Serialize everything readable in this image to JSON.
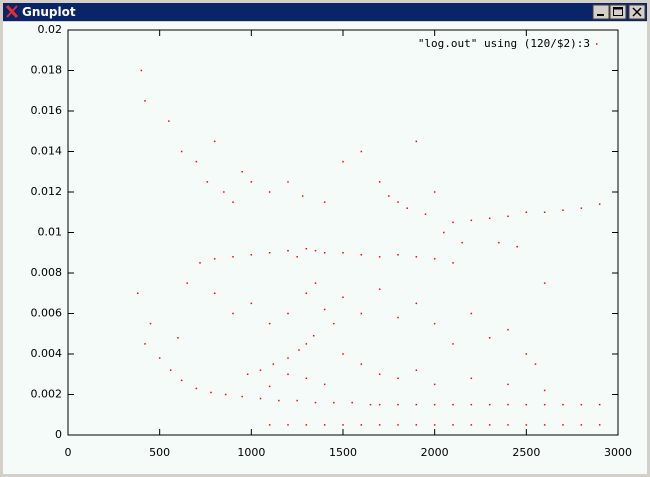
{
  "window": {
    "title": "Gnuplot"
  },
  "chart_data": {
    "type": "scatter",
    "xlim": [
      0,
      3000
    ],
    "ylim": [
      0,
      0.02
    ],
    "xticks": [
      0,
      500,
      1000,
      1500,
      2000,
      2500,
      3000
    ],
    "yticks": [
      0,
      0.002,
      0.004,
      0.006,
      0.008,
      0.01,
      0.012,
      0.014,
      0.016,
      0.018,
      0.02
    ],
    "legend": "top-right",
    "series": [
      {
        "name": "\"log.out\" using (120/$2):3",
        "color": "#ff0000",
        "x": [
          1100,
          1200,
          1300,
          1400,
          1500,
          1600,
          1700,
          1800,
          1900,
          2000,
          2100,
          2200,
          2300,
          2400,
          2500,
          2600,
          2700,
          2800,
          2900,
          1700,
          1800,
          1900,
          2000,
          2100,
          2200,
          2300,
          2400,
          2500,
          2600,
          2700,
          2800,
          2900,
          420,
          500,
          560,
          620,
          700,
          780,
          860,
          950,
          1050,
          1150,
          1250,
          1350,
          1450,
          1550,
          1650,
          980,
          1050,
          1120,
          1200,
          1260,
          1300,
          1340,
          720,
          800,
          900,
          1000,
          1100,
          1200,
          1250,
          1300,
          1350,
          1400,
          1500,
          1600,
          1700,
          1800,
          1900,
          2000,
          2100,
          1750,
          1850,
          1950,
          2100,
          2200,
          2300,
          2400,
          2500,
          2600,
          2700,
          2800,
          2900,
          400,
          420,
          550,
          620,
          700,
          760,
          800,
          850,
          900,
          950,
          1000,
          1100,
          1200,
          1280,
          1400,
          1500,
          1600,
          1700,
          1800,
          1900,
          2000,
          2050,
          2150,
          2350,
          2450,
          2600,
          650,
          800,
          900,
          1000,
          1100,
          1200,
          1300,
          1350,
          1400,
          1450,
          1500,
          1600,
          1700,
          1800,
          1900,
          2000,
          2100,
          2200,
          2300,
          2400,
          2500,
          2550,
          1500,
          1600,
          1700,
          1800,
          1900,
          2000,
          2200,
          2400,
          2600,
          1400,
          1300,
          1200,
          1100,
          380,
          450,
          600
        ],
        "values": [
          0.0005,
          0.0005,
          0.0005,
          0.0005,
          0.0005,
          0.0005,
          0.0005,
          0.0005,
          0.0005,
          0.0005,
          0.0005,
          0.0005,
          0.0005,
          0.0005,
          0.0005,
          0.0005,
          0.0005,
          0.0005,
          0.0005,
          0.0015,
          0.0015,
          0.0015,
          0.0015,
          0.0015,
          0.0015,
          0.0015,
          0.0015,
          0.0015,
          0.0015,
          0.0015,
          0.0015,
          0.0015,
          0.0045,
          0.0038,
          0.0032,
          0.0027,
          0.0023,
          0.0021,
          0.002,
          0.0019,
          0.0018,
          0.0017,
          0.0017,
          0.0016,
          0.0016,
          0.0016,
          0.0015,
          0.003,
          0.0032,
          0.0035,
          0.0038,
          0.0042,
          0.0045,
          0.0049,
          0.0085,
          0.0087,
          0.0088,
          0.0089,
          0.009,
          0.0091,
          0.0088,
          0.0092,
          0.0091,
          0.009,
          0.009,
          0.0089,
          0.0088,
          0.0089,
          0.0088,
          0.0087,
          0.0085,
          0.0118,
          0.0112,
          0.0109,
          0.0105,
          0.0106,
          0.0107,
          0.0108,
          0.011,
          0.011,
          0.0111,
          0.0112,
          0.0114,
          0.018,
          0.0165,
          0.0155,
          0.014,
          0.0135,
          0.0125,
          0.0145,
          0.012,
          0.0115,
          0.013,
          0.0125,
          0.012,
          0.0125,
          0.0118,
          0.0115,
          0.0135,
          0.014,
          0.0125,
          0.0115,
          0.0145,
          0.012,
          0.01,
          0.0095,
          0.0095,
          0.0093,
          0.0075,
          0.0075,
          0.007,
          0.006,
          0.0065,
          0.0055,
          0.006,
          0.007,
          0.0075,
          0.0062,
          0.0055,
          0.0068,
          0.006,
          0.0072,
          0.0058,
          0.0065,
          0.0055,
          0.0045,
          0.006,
          0.0048,
          0.0052,
          0.004,
          0.0035,
          0.004,
          0.0035,
          0.003,
          0.0028,
          0.0032,
          0.0025,
          0.0028,
          0.0025,
          0.0022,
          0.0025,
          0.0028,
          0.003,
          0.0024,
          0.007,
          0.0055,
          0.0048
        ]
      }
    ]
  }
}
